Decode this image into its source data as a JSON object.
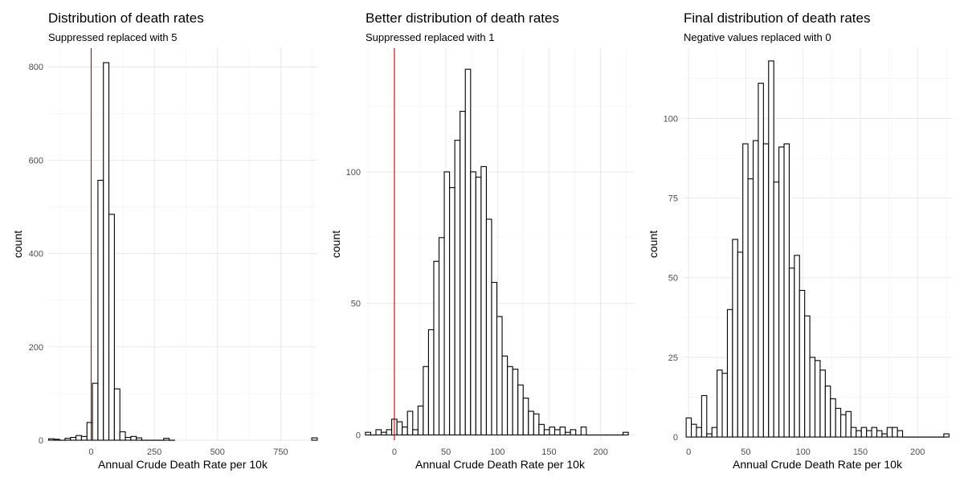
{
  "chart_data": [
    {
      "type": "bar",
      "title": "Distribution of death rates",
      "subtitle": "Suppressed replaced with 5",
      "xlabel": "Annual Crude Death Rate per 10k",
      "ylabel": "count",
      "xlim": [
        -170,
        895
      ],
      "ylim": [
        0,
        840
      ],
      "xticks": [
        0,
        250,
        500,
        750
      ],
      "yticks": [
        0,
        200,
        400,
        600,
        800
      ],
      "bin_width": 21.7,
      "bins": [
        {
          "x0": -168.5,
          "count": 3
        },
        {
          "x0": -146.8,
          "count": 2
        },
        {
          "x0": -125.1,
          "count": 0
        },
        {
          "x0": -103.4,
          "count": 4
        },
        {
          "x0": -81.7,
          "count": 6
        },
        {
          "x0": -60.0,
          "count": 10
        },
        {
          "x0": -38.3,
          "count": 8
        },
        {
          "x0": -16.6,
          "count": 38
        },
        {
          "x0": 5.1,
          "count": 122
        },
        {
          "x0": 26.8,
          "count": 557
        },
        {
          "x0": 48.5,
          "count": 809
        },
        {
          "x0": 70.2,
          "count": 484
        },
        {
          "x0": 91.9,
          "count": 110
        },
        {
          "x0": 113.6,
          "count": 18
        },
        {
          "x0": 135.3,
          "count": 6
        },
        {
          "x0": 157.0,
          "count": 8
        },
        {
          "x0": 178.7,
          "count": 5
        },
        {
          "x0": 200.4,
          "count": 0
        },
        {
          "x0": 222.1,
          "count": 0
        },
        {
          "x0": 243.8,
          "count": 0
        },
        {
          "x0": 265.5,
          "count": 0
        },
        {
          "x0": 287.2,
          "count": 4
        },
        {
          "x0": 308.9,
          "count": 0
        },
        {
          "x0": 873.1,
          "count": 5
        }
      ],
      "reference_line_x": 0,
      "reference_line_color": "#cc0000"
    },
    {
      "type": "bar",
      "title": "Better distribution of death rates",
      "subtitle": "Suppressed replaced with 1",
      "xlabel": "Annual Crude Death Rate per 10k",
      "ylabel": "count",
      "xlim": [
        -28,
        233
      ],
      "ylim": [
        -2,
        147
      ],
      "xticks": [
        0,
        50,
        100,
        150,
        200
      ],
      "yticks": [
        0,
        50,
        100
      ],
      "bin_width": 5.1,
      "bins": [
        {
          "x0": -28.1,
          "count": 1
        },
        {
          "x0": -23.0,
          "count": 0
        },
        {
          "x0": -17.9,
          "count": 2
        },
        {
          "x0": -12.8,
          "count": 1
        },
        {
          "x0": -7.7,
          "count": 2
        },
        {
          "x0": -2.6,
          "count": 6
        },
        {
          "x0": 2.5,
          "count": 5
        },
        {
          "x0": 7.6,
          "count": 3
        },
        {
          "x0": 12.7,
          "count": 9
        },
        {
          "x0": 17.8,
          "count": 2
        },
        {
          "x0": 22.9,
          "count": 11
        },
        {
          "x0": 28.0,
          "count": 26
        },
        {
          "x0": 33.1,
          "count": 40
        },
        {
          "x0": 38.2,
          "count": 66
        },
        {
          "x0": 43.3,
          "count": 75
        },
        {
          "x0": 48.4,
          "count": 100
        },
        {
          "x0": 53.5,
          "count": 94
        },
        {
          "x0": 58.6,
          "count": 112
        },
        {
          "x0": 63.7,
          "count": 123
        },
        {
          "x0": 68.8,
          "count": 139
        },
        {
          "x0": 73.9,
          "count": 100
        },
        {
          "x0": 79.0,
          "count": 98
        },
        {
          "x0": 84.1,
          "count": 102
        },
        {
          "x0": 89.2,
          "count": 82
        },
        {
          "x0": 94.3,
          "count": 58
        },
        {
          "x0": 99.4,
          "count": 45
        },
        {
          "x0": 104.5,
          "count": 30
        },
        {
          "x0": 109.6,
          "count": 26
        },
        {
          "x0": 114.7,
          "count": 25
        },
        {
          "x0": 119.8,
          "count": 19
        },
        {
          "x0": 124.9,
          "count": 14
        },
        {
          "x0": 130.0,
          "count": 9
        },
        {
          "x0": 135.1,
          "count": 8
        },
        {
          "x0": 140.2,
          "count": 4
        },
        {
          "x0": 145.3,
          "count": 2
        },
        {
          "x0": 150.4,
          "count": 3
        },
        {
          "x0": 155.5,
          "count": 2
        },
        {
          "x0": 160.6,
          "count": 3
        },
        {
          "x0": 165.7,
          "count": 1
        },
        {
          "x0": 170.8,
          "count": 2
        },
        {
          "x0": 175.9,
          "count": 0
        },
        {
          "x0": 181.0,
          "count": 3
        },
        {
          "x0": 186.1,
          "count": 0
        },
        {
          "x0": 191.2,
          "count": 0
        },
        {
          "x0": 196.3,
          "count": 0
        },
        {
          "x0": 201.4,
          "count": 0
        },
        {
          "x0": 206.5,
          "count": 0
        },
        {
          "x0": 211.6,
          "count": 0
        },
        {
          "x0": 216.7,
          "count": 0
        },
        {
          "x0": 221.8,
          "count": 1
        }
      ],
      "reference_line_x": 0,
      "reference_line_color": "#cc0000"
    },
    {
      "type": "bar",
      "title": "Final distribution of death rates",
      "subtitle": "Negative values replaced with 0",
      "xlabel": "Annual Crude Death Rate per 10k",
      "ylabel": "count",
      "xlim": [
        -5,
        230
      ],
      "ylim": [
        -1,
        122
      ],
      "xticks": [
        0,
        50,
        100,
        150,
        200
      ],
      "yticks": [
        0,
        25,
        50,
        75,
        100
      ],
      "bin_width": 4.5,
      "bins": [
        {
          "x0": -2.1,
          "count": 6
        },
        {
          "x0": 2.4,
          "count": 4
        },
        {
          "x0": 6.9,
          "count": 3
        },
        {
          "x0": 11.4,
          "count": 13
        },
        {
          "x0": 15.9,
          "count": 1
        },
        {
          "x0": 20.4,
          "count": 3
        },
        {
          "x0": 24.9,
          "count": 21
        },
        {
          "x0": 29.4,
          "count": 20
        },
        {
          "x0": 33.9,
          "count": 40
        },
        {
          "x0": 38.4,
          "count": 62
        },
        {
          "x0": 42.9,
          "count": 58
        },
        {
          "x0": 47.4,
          "count": 92
        },
        {
          "x0": 51.9,
          "count": 81
        },
        {
          "x0": 56.4,
          "count": 93
        },
        {
          "x0": 60.9,
          "count": 111
        },
        {
          "x0": 65.4,
          "count": 92
        },
        {
          "x0": 69.9,
          "count": 118
        },
        {
          "x0": 74.4,
          "count": 80
        },
        {
          "x0": 78.9,
          "count": 91
        },
        {
          "x0": 83.4,
          "count": 92
        },
        {
          "x0": 87.9,
          "count": 53
        },
        {
          "x0": 92.4,
          "count": 57
        },
        {
          "x0": 96.9,
          "count": 46
        },
        {
          "x0": 101.4,
          "count": 38
        },
        {
          "x0": 105.9,
          "count": 25
        },
        {
          "x0": 110.4,
          "count": 24
        },
        {
          "x0": 114.9,
          "count": 21
        },
        {
          "x0": 119.4,
          "count": 16
        },
        {
          "x0": 123.9,
          "count": 12
        },
        {
          "x0": 128.4,
          "count": 9
        },
        {
          "x0": 132.9,
          "count": 7
        },
        {
          "x0": 137.4,
          "count": 8
        },
        {
          "x0": 141.9,
          "count": 3
        },
        {
          "x0": 146.4,
          "count": 2
        },
        {
          "x0": 150.9,
          "count": 3
        },
        {
          "x0": 155.4,
          "count": 2
        },
        {
          "x0": 159.9,
          "count": 3
        },
        {
          "x0": 164.4,
          "count": 2
        },
        {
          "x0": 168.9,
          "count": 1
        },
        {
          "x0": 173.4,
          "count": 3
        },
        {
          "x0": 177.9,
          "count": 3
        },
        {
          "x0": 182.4,
          "count": 2
        },
        {
          "x0": 186.9,
          "count": 0
        },
        {
          "x0": 191.4,
          "count": 0
        },
        {
          "x0": 195.9,
          "count": 0
        },
        {
          "x0": 200.4,
          "count": 0
        },
        {
          "x0": 204.9,
          "count": 0
        },
        {
          "x0": 209.4,
          "count": 0
        },
        {
          "x0": 213.9,
          "count": 0
        },
        {
          "x0": 218.4,
          "count": 0
        },
        {
          "x0": 222.9,
          "count": 1
        }
      ]
    }
  ]
}
